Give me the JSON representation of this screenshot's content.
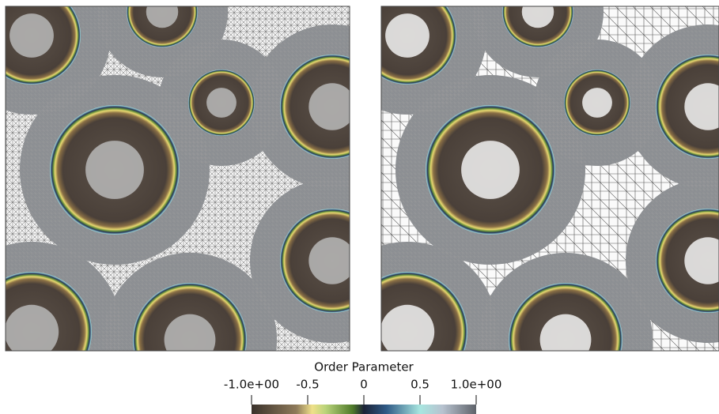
{
  "colorbar": {
    "title": "Order Parameter",
    "range": [
      -1,
      1
    ],
    "ticks": [
      {
        "value": -1,
        "label": "-1.0e+00"
      },
      -0.5,
      0,
      0.5,
      {
        "value": 1,
        "label": "1.0e+00"
      }
    ]
  }
}
